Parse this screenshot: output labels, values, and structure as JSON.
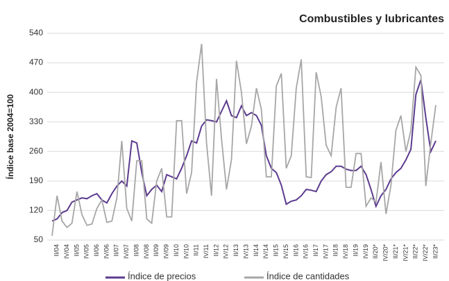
{
  "chart_data": {
    "type": "line",
    "title": "Combustibles y lubricantes",
    "ylabel": "Índice base 2004=100",
    "categories": [
      null,
      "II/04",
      null,
      "IV/04",
      null,
      "II/05",
      null,
      "IV/05",
      null,
      "II/06",
      null,
      "IV/06",
      null,
      "II/07",
      null,
      "IV/07",
      null,
      "II/08",
      null,
      "IV/08",
      null,
      "II/09",
      null,
      "IV/09",
      null,
      "II/10",
      null,
      "IV/10",
      null,
      "II/11",
      null,
      "IV/11",
      null,
      "II/12",
      null,
      "IV/12",
      null,
      "II/13",
      null,
      "IV/13",
      null,
      "II/14",
      null,
      "IV/14",
      null,
      "II/15",
      null,
      "IV/15",
      null,
      "II/16",
      null,
      "IV/16",
      null,
      "II/17",
      null,
      "IV/17",
      null,
      "II/18",
      null,
      "IV/18",
      null,
      "II/19",
      null,
      "IV/19",
      null,
      "II/20*",
      null,
      "IV/20*",
      null,
      "II/21*",
      null,
      "IV/21*",
      null,
      "II/22*",
      null,
      "IV/22*",
      null,
      "II/23*"
    ],
    "series": [
      {
        "name": "Índice de precios",
        "color": "#5b3a8e",
        "values": [
          95,
          100,
          115,
          120,
          140,
          145,
          150,
          148,
          155,
          160,
          145,
          138,
          160,
          178,
          190,
          178,
          285,
          280,
          210,
          155,
          170,
          180,
          165,
          205,
          200,
          195,
          220,
          250,
          285,
          280,
          320,
          335,
          333,
          330,
          355,
          380,
          345,
          340,
          368,
          345,
          352,
          345,
          322,
          250,
          220,
          210,
          180,
          135,
          142,
          145,
          155,
          170,
          168,
          165,
          190,
          205,
          212,
          225,
          225,
          218,
          215,
          215,
          225,
          205,
          170,
          130,
          155,
          170,
          195,
          210,
          220,
          240,
          265,
          395,
          430,
          340,
          260,
          285
        ]
      },
      {
        "name": "Índice de cantidades",
        "color": "#a6a6a6",
        "values": [
          60,
          155,
          95,
          80,
          90,
          165,
          110,
          85,
          88,
          125,
          145,
          92,
          95,
          150,
          285,
          125,
          95,
          238,
          238,
          100,
          90,
          190,
          220,
          105,
          105,
          333,
          333,
          160,
          210,
          425,
          515,
          280,
          155,
          432,
          290,
          170,
          240,
          475,
          400,
          278,
          320,
          410,
          360,
          200,
          200,
          415,
          445,
          220,
          250,
          410,
          478,
          200,
          198,
          448,
          390,
          275,
          250,
          365,
          410,
          175,
          175,
          255,
          255,
          130,
          150,
          140,
          235,
          112,
          180,
          310,
          345,
          260,
          310,
          460,
          440,
          178,
          280,
          370
        ]
      }
    ],
    "ylim": [
      50,
      540
    ],
    "yticks": [
      50,
      120,
      190,
      260,
      330,
      400,
      470,
      540
    ],
    "grid": true,
    "legend": "bottom"
  }
}
